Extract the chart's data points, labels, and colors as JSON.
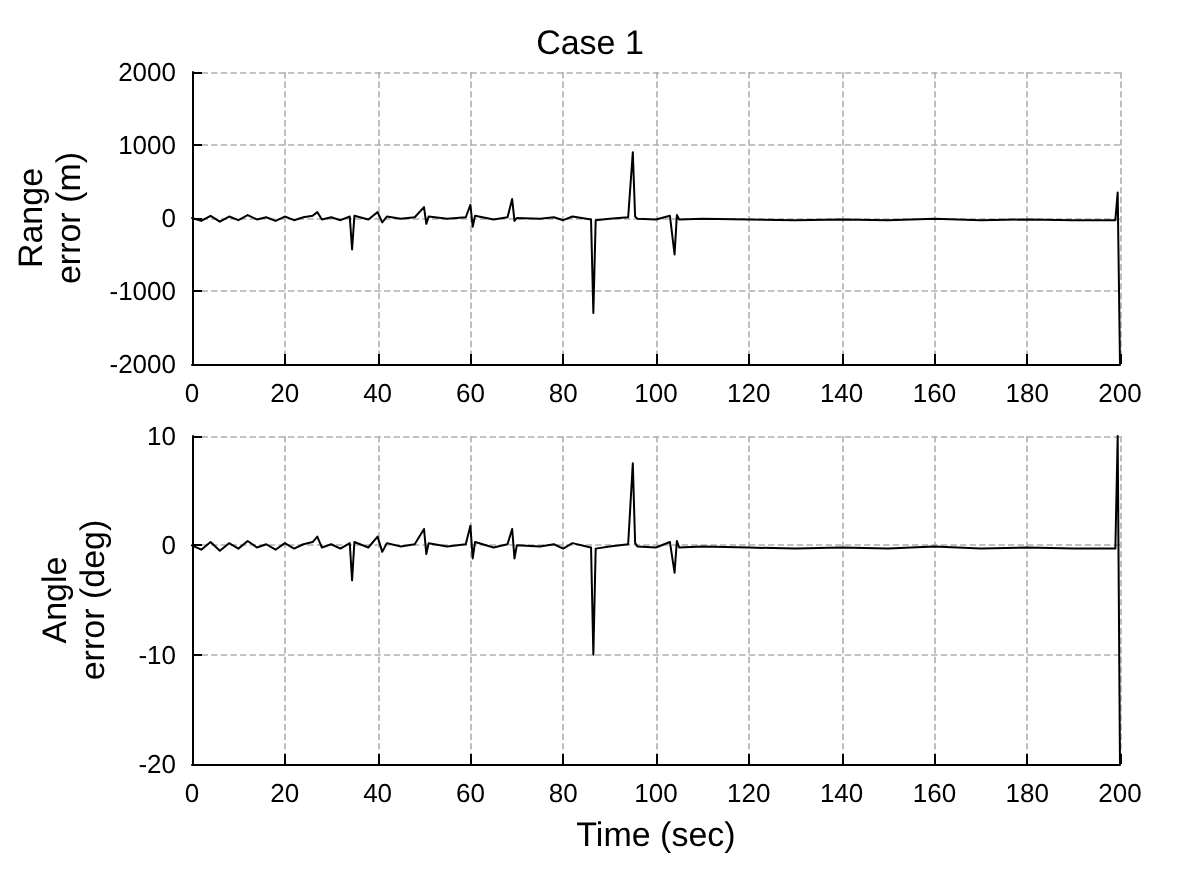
{
  "chart_data": [
    {
      "type": "line",
      "title": "Case 1",
      "ylabel": "Range\nerror (m)",
      "x": [
        0,
        2,
        4,
        6,
        8,
        10,
        12,
        14,
        16,
        18,
        20,
        22,
        24,
        26,
        27,
        28,
        30,
        32,
        34,
        34.5,
        35,
        38,
        40,
        41,
        42,
        45,
        48,
        50,
        50.5,
        51,
        55,
        59,
        60,
        60.5,
        61,
        65,
        68,
        69,
        69.5,
        70,
        75,
        78,
        80,
        82,
        85,
        86,
        86.5,
        87,
        90,
        94,
        95,
        95.5,
        96,
        100,
        103,
        104,
        104.5,
        105,
        110,
        120,
        130,
        140,
        150,
        160,
        170,
        180,
        190,
        199,
        199.5,
        200
      ],
      "series": [
        {
          "color": "#000000",
          "values": [
            0,
            -40,
            30,
            -50,
            20,
            -30,
            40,
            -20,
            10,
            -40,
            20,
            -30,
            10,
            30,
            80,
            -20,
            10,
            -30,
            20,
            -430,
            30,
            -20,
            80,
            -60,
            20,
            -10,
            10,
            150,
            -80,
            20,
            -10,
            10,
            180,
            -120,
            30,
            -20,
            10,
            260,
            -40,
            0,
            -10,
            10,
            -30,
            20,
            -10,
            -20,
            -1300,
            -30,
            -10,
            10,
            900,
            20,
            -10,
            -20,
            30,
            -500,
            40,
            -20,
            -10,
            -20,
            -30,
            -20,
            -30,
            -10,
            -30,
            -20,
            -30,
            -30,
            350,
            -2000
          ]
        }
      ],
      "xlim": [
        0,
        200
      ],
      "xticks": [
        0,
        20,
        40,
        60,
        80,
        100,
        120,
        140,
        160,
        180,
        200
      ],
      "ylim": [
        -2000,
        2000
      ],
      "yticks": [
        -2000,
        -1000,
        0,
        1000,
        2000
      ],
      "grid": true,
      "line_style": "solid",
      "marker": "none"
    },
    {
      "type": "line",
      "xlabel": "Time (sec)",
      "ylabel": "Angle\nerror (deg)",
      "x": [
        0,
        2,
        4,
        6,
        8,
        10,
        12,
        14,
        16,
        18,
        20,
        22,
        24,
        26,
        27,
        28,
        30,
        32,
        34,
        34.5,
        35,
        38,
        40,
        41,
        42,
        45,
        48,
        50,
        50.5,
        51,
        55,
        59,
        60,
        60.5,
        61,
        65,
        68,
        69,
        69.5,
        70,
        75,
        78,
        80,
        82,
        85,
        86,
        86.5,
        87,
        90,
        94,
        95,
        95.5,
        96,
        100,
        103,
        104,
        104.5,
        105,
        110,
        120,
        130,
        140,
        150,
        160,
        170,
        180,
        190,
        199,
        199.5,
        200
      ],
      "series": [
        {
          "color": "#000000",
          "values": [
            0,
            -0.4,
            0.3,
            -0.5,
            0.2,
            -0.3,
            0.4,
            -0.2,
            0.1,
            -0.4,
            0.2,
            -0.3,
            0.1,
            0.3,
            0.8,
            -0.2,
            0.1,
            -0.3,
            0.2,
            -3.2,
            0.3,
            -0.2,
            0.8,
            -0.6,
            0.2,
            -0.1,
            0.1,
            1.5,
            -0.8,
            0.2,
            -0.1,
            0.1,
            1.8,
            -1.2,
            0.3,
            -0.2,
            0.1,
            1.5,
            -1.2,
            0,
            -0.1,
            0.1,
            -0.3,
            0.2,
            -0.1,
            -0.2,
            -10,
            -0.3,
            -0.1,
            0.1,
            7.5,
            0.2,
            -0.1,
            -0.2,
            0.3,
            -2.5,
            0.4,
            -0.2,
            -0.1,
            -0.2,
            -0.3,
            -0.2,
            -0.3,
            -0.1,
            -0.3,
            -0.2,
            -0.3,
            -0.3,
            10,
            -20
          ]
        }
      ],
      "xlim": [
        0,
        200
      ],
      "xticks": [
        0,
        20,
        40,
        60,
        80,
        100,
        120,
        140,
        160,
        180,
        200
      ],
      "ylim": [
        -20,
        10
      ],
      "yticks": [
        -20,
        -10,
        0,
        10
      ],
      "grid": true,
      "line_style": "solid",
      "marker": "none"
    }
  ]
}
